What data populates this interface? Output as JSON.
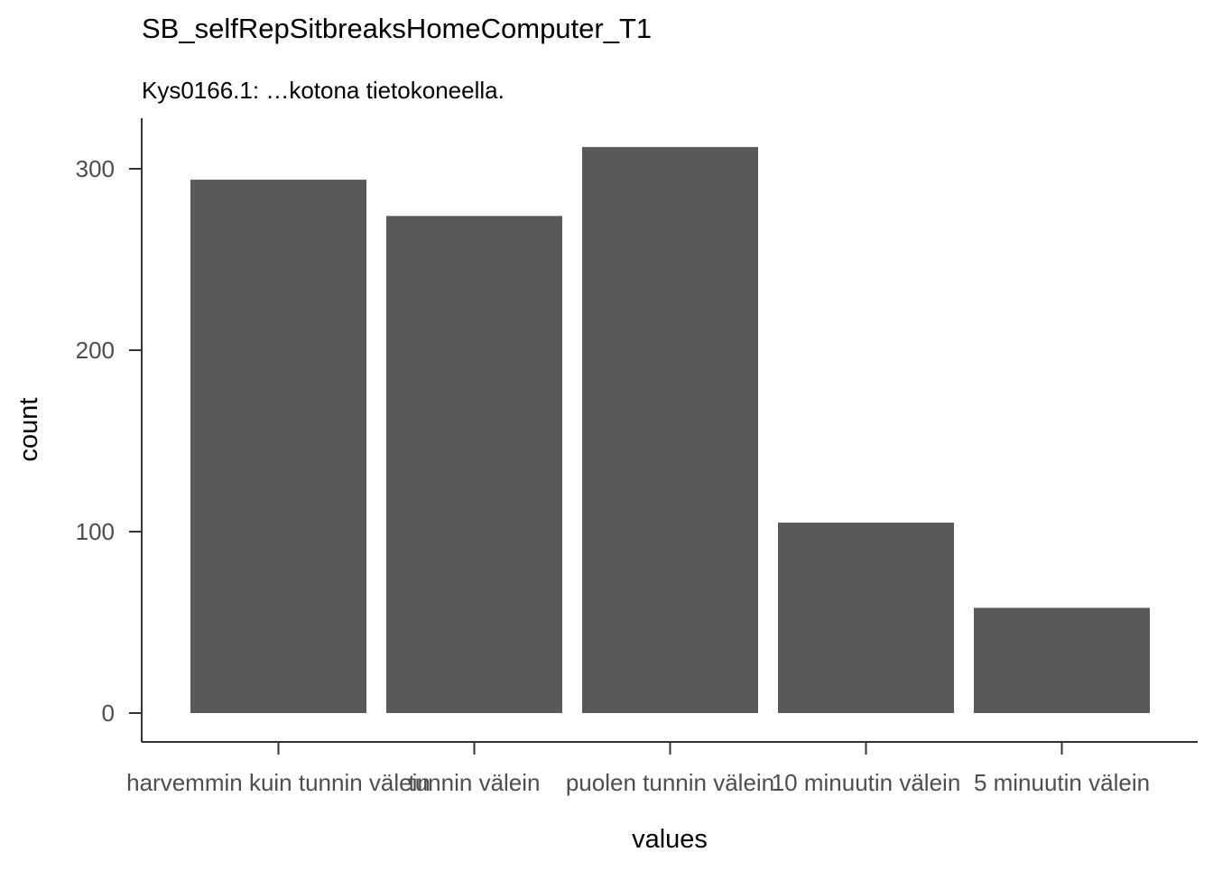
{
  "chart_data": {
    "type": "bar",
    "title": "SB_selfRepSitbreaksHomeComputer_T1",
    "subtitle": "Kys0166.1: …kotona tietokoneella.",
    "xlabel": "values",
    "ylabel": "count",
    "categories": [
      "harvemmin kuin tunnin välein",
      "tunnin välein",
      "puolen tunnin välein",
      "10 minuutin välein",
      "5 minuutin välein"
    ],
    "values": [
      294,
      274,
      312,
      105,
      58
    ],
    "ylim": [
      0,
      327
    ],
    "yticks": [
      0,
      100,
      200,
      300
    ],
    "bar_color": "#595959",
    "axis_color": "#333333",
    "text_color": "#000000",
    "tick_label_color": "#4d4d4d",
    "grid": false
  }
}
